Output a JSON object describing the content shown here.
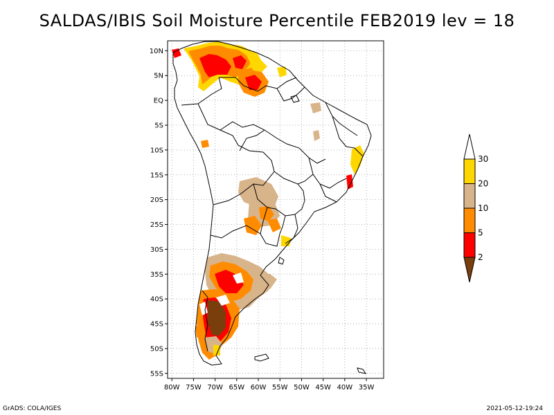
{
  "title": "SALDAS/IBIS Soil Moisture Percentile FEB2019 lev = 18",
  "map": {
    "lon_range": [
      -81,
      -31
    ],
    "lat_range": [
      -56,
      12
    ],
    "lat_ticks": [
      {
        "value": 10,
        "label": "10N"
      },
      {
        "value": 5,
        "label": "5N"
      },
      {
        "value": 0,
        "label": "EQ"
      },
      {
        "value": -5,
        "label": "5S"
      },
      {
        "value": -10,
        "label": "10S"
      },
      {
        "value": -15,
        "label": "15S"
      },
      {
        "value": -20,
        "label": "20S"
      },
      {
        "value": -25,
        "label": "25S"
      },
      {
        "value": -30,
        "label": "30S"
      },
      {
        "value": -35,
        "label": "35S"
      },
      {
        "value": -40,
        "label": "40S"
      },
      {
        "value": -45,
        "label": "45S"
      },
      {
        "value": -50,
        "label": "50S"
      },
      {
        "value": -55,
        "label": "55S"
      }
    ],
    "lon_ticks": [
      {
        "value": -80,
        "label": "80W"
      },
      {
        "value": -75,
        "label": "75W"
      },
      {
        "value": -70,
        "label": "70W"
      },
      {
        "value": -65,
        "label": "65W"
      },
      {
        "value": -60,
        "label": "60W"
      },
      {
        "value": -55,
        "label": "55W"
      },
      {
        "value": -50,
        "label": "50W"
      },
      {
        "value": -45,
        "label": "45W"
      },
      {
        "value": -40,
        "label": "40W"
      },
      {
        "value": -35,
        "label": "35W"
      }
    ],
    "grid": "dotted"
  },
  "colorbar": {
    "levels": [
      "2",
      "5",
      "10",
      "20",
      "30"
    ],
    "colors": [
      "#7a3d0c",
      "#ff0000",
      "#ff8c00",
      "#d8b48a",
      "#ffd700",
      "#ffffff"
    ]
  },
  "footer": {
    "left": "GrADS: COLA/IGES",
    "right": "2021-05-12-19:24"
  }
}
